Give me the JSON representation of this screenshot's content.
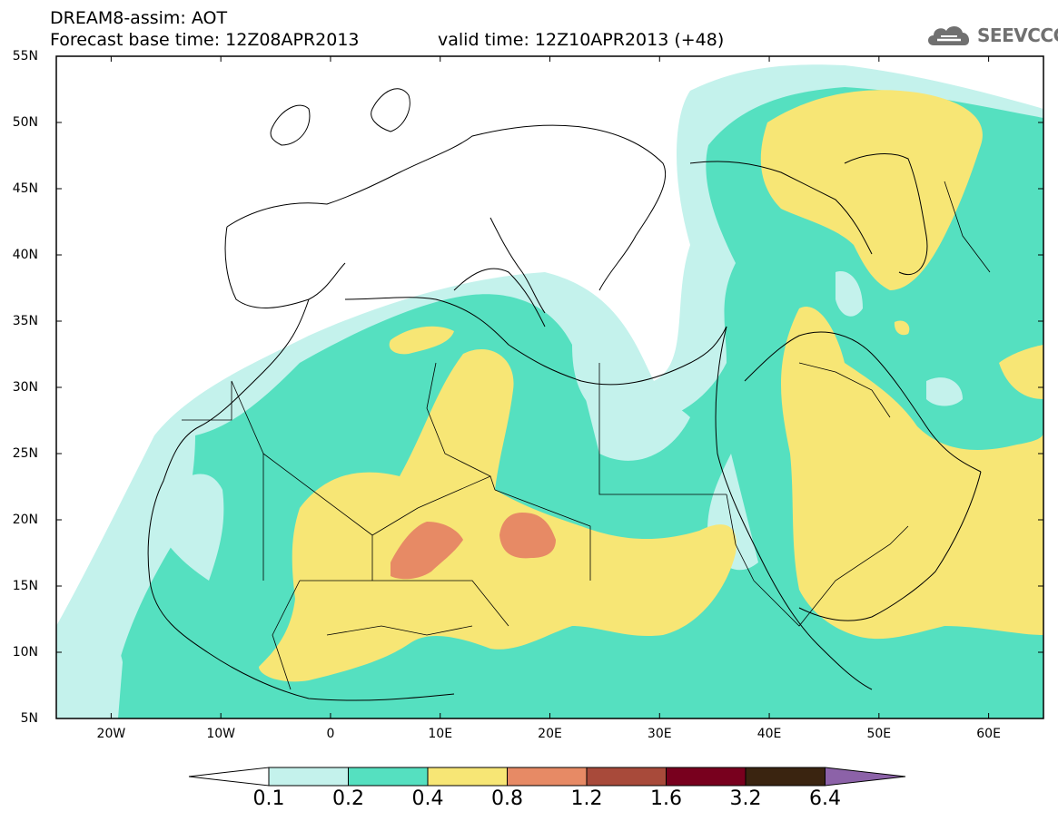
{
  "header": {
    "line1": "DREAM8-assim: AOT",
    "line2": "Forecast base time: 12Z08APR2013",
    "valid": "valid time: 12Z10APR2013 (+48)"
  },
  "logo": {
    "text": "SEEVCCC",
    "icon": "cloud-icon"
  },
  "map": {
    "lat_labels": [
      "55N",
      "50N",
      "45N",
      "40N",
      "35N",
      "30N",
      "25N",
      "20N",
      "15N",
      "10N",
      "5N"
    ],
    "lon_labels": [
      "20W",
      "10W",
      "0",
      "10E",
      "20E",
      "30E",
      "40E",
      "50E",
      "60E"
    ],
    "extent": {
      "lon": [
        -25,
        65
      ],
      "lat": [
        5,
        55
      ]
    },
    "projection": "lat-lon"
  },
  "legend": {
    "title": "",
    "thresholds": [
      "0.1",
      "0.2",
      "0.4",
      "0.8",
      "1.2",
      "1.6",
      "3.2",
      "6.4"
    ],
    "colors": [
      "#c4f2ec",
      "#55e0c0",
      "#f7e675",
      "#e78a65",
      "#a84a3a",
      "#78001e",
      "#3a2410",
      "#8c62a8"
    ]
  }
}
